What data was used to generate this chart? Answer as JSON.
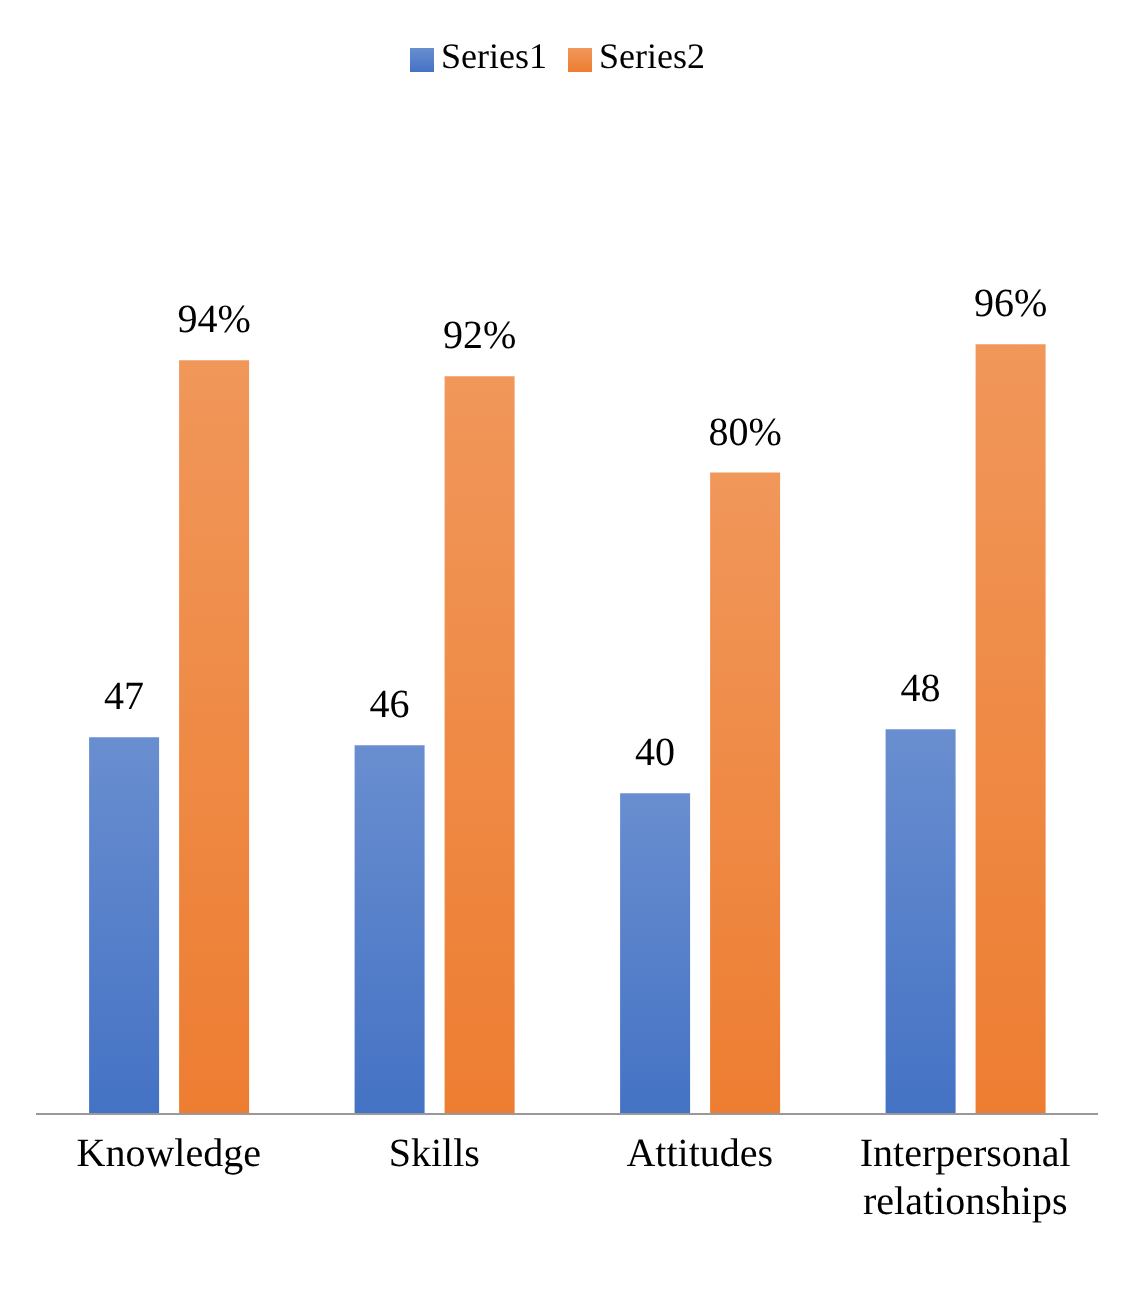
{
  "chart_data": {
    "type": "bar",
    "categories": [
      "Knowledge",
      "Skills",
      "Attitudes",
      "Interpersonal relationships"
    ],
    "series": [
      {
        "name": "Series1",
        "color": "#4472c4",
        "values": [
          47,
          46,
          40,
          48
        ],
        "value_labels": [
          "47",
          "46",
          "40",
          "48"
        ]
      },
      {
        "name": "Series2",
        "color": "#ed7d31",
        "values": [
          94,
          92,
          80,
          96
        ],
        "value_labels": [
          "94%",
          "92%",
          "80%",
          "96%"
        ]
      }
    ],
    "legend": "top",
    "grid": false
  }
}
